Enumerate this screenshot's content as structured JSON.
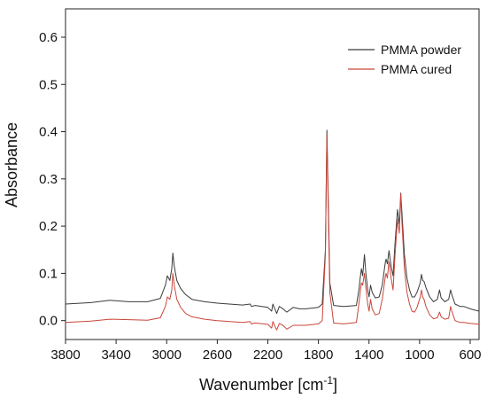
{
  "chart_data": {
    "type": "line",
    "xlabel": "Wavenumber [cm",
    "xlabel_sup": "-1",
    "xlabel_tail": "]",
    "ylabel": "Absorbance",
    "x_reversed": true,
    "xlim": [
      3800,
      530
    ],
    "ylim": [
      -0.04,
      0.66
    ],
    "x_ticks": [
      3800,
      3400,
      3000,
      2600,
      2200,
      1800,
      1400,
      1000,
      600
    ],
    "x_tick_labels": [
      "3800",
      "3400",
      "3000",
      "2600",
      "2200",
      "1800",
      "1400",
      "1000",
      "600"
    ],
    "y_ticks": [
      0.0,
      0.1,
      0.2,
      0.3,
      0.4,
      0.5,
      0.6
    ],
    "y_tick_labels": [
      "0.0",
      "0.1",
      "0.2",
      "0.3",
      "0.4",
      "0.5",
      "0.6"
    ],
    "grid": false,
    "legend_position": "top-right",
    "series": [
      {
        "name": "PMMA powder",
        "color": "#3a3a3a",
        "points": [
          [
            3800,
            0.035
          ],
          [
            3600,
            0.038
          ],
          [
            3450,
            0.043
          ],
          [
            3300,
            0.04
          ],
          [
            3150,
            0.04
          ],
          [
            3050,
            0.047
          ],
          [
            3010,
            0.075
          ],
          [
            2995,
            0.095
          ],
          [
            2975,
            0.085
          ],
          [
            2960,
            0.11
          ],
          [
            2951,
            0.143
          ],
          [
            2940,
            0.115
          ],
          [
            2920,
            0.085
          ],
          [
            2890,
            0.068
          ],
          [
            2850,
            0.055
          ],
          [
            2800,
            0.045
          ],
          [
            2700,
            0.04
          ],
          [
            2600,
            0.037
          ],
          [
            2400,
            0.033
          ],
          [
            2340,
            0.035
          ],
          [
            2330,
            0.03
          ],
          [
            2300,
            0.032
          ],
          [
            2200,
            0.028
          ],
          [
            2170,
            0.02
          ],
          [
            2160,
            0.035
          ],
          [
            2130,
            0.015
          ],
          [
            2110,
            0.03
          ],
          [
            2080,
            0.025
          ],
          [
            2050,
            0.018
          ],
          [
            2000,
            0.028
          ],
          [
            1950,
            0.025
          ],
          [
            1900,
            0.025
          ],
          [
            1800,
            0.028
          ],
          [
            1770,
            0.035
          ],
          [
            1745,
            0.15
          ],
          [
            1733,
            0.403
          ],
          [
            1722,
            0.25
          ],
          [
            1710,
            0.08
          ],
          [
            1680,
            0.032
          ],
          [
            1600,
            0.03
          ],
          [
            1500,
            0.032
          ],
          [
            1480,
            0.065
          ],
          [
            1470,
            0.09
          ],
          [
            1460,
            0.11
          ],
          [
            1450,
            0.095
          ],
          [
            1436,
            0.14
          ],
          [
            1425,
            0.1
          ],
          [
            1410,
            0.065
          ],
          [
            1400,
            0.05
          ],
          [
            1388,
            0.075
          ],
          [
            1375,
            0.06
          ],
          [
            1350,
            0.048
          ],
          [
            1320,
            0.05
          ],
          [
            1295,
            0.075
          ],
          [
            1270,
            0.125
          ],
          [
            1265,
            0.13
          ],
          [
            1255,
            0.12
          ],
          [
            1242,
            0.148
          ],
          [
            1225,
            0.115
          ],
          [
            1210,
            0.095
          ],
          [
            1195,
            0.16
          ],
          [
            1175,
            0.235
          ],
          [
            1160,
            0.205
          ],
          [
            1149,
            0.27
          ],
          [
            1140,
            0.23
          ],
          [
            1120,
            0.14
          ],
          [
            1100,
            0.09
          ],
          [
            1080,
            0.065
          ],
          [
            1060,
            0.05
          ],
          [
            1040,
            0.05
          ],
          [
            1020,
            0.06
          ],
          [
            995,
            0.08
          ],
          [
            985,
            0.098
          ],
          [
            975,
            0.085
          ],
          [
            965,
            0.083
          ],
          [
            950,
            0.07
          ],
          [
            920,
            0.05
          ],
          [
            890,
            0.04
          ],
          [
            860,
            0.045
          ],
          [
            842,
            0.065
          ],
          [
            830,
            0.048
          ],
          [
            800,
            0.04
          ],
          [
            770,
            0.045
          ],
          [
            755,
            0.065
          ],
          [
            745,
            0.055
          ],
          [
            720,
            0.035
          ],
          [
            680,
            0.03
          ],
          [
            650,
            0.03
          ],
          [
            600,
            0.025
          ],
          [
            560,
            0.022
          ],
          [
            530,
            0.02
          ]
        ]
      },
      {
        "name": "PMMA cured",
        "color": "#c9463a",
        "points": [
          [
            3800,
            -0.004
          ],
          [
            3600,
            -0.001
          ],
          [
            3450,
            0.003
          ],
          [
            3300,
            0.002
          ],
          [
            3150,
            0.001
          ],
          [
            3050,
            0.006
          ],
          [
            3010,
            0.03
          ],
          [
            2995,
            0.05
          ],
          [
            2975,
            0.045
          ],
          [
            2960,
            0.065
          ],
          [
            2951,
            0.1
          ],
          [
            2940,
            0.075
          ],
          [
            2920,
            0.045
          ],
          [
            2890,
            0.028
          ],
          [
            2850,
            0.015
          ],
          [
            2800,
            0.008
          ],
          [
            2700,
            0.003
          ],
          [
            2600,
            0.0
          ],
          [
            2400,
            -0.004
          ],
          [
            2340,
            -0.002
          ],
          [
            2330,
            -0.007
          ],
          [
            2300,
            -0.005
          ],
          [
            2200,
            -0.008
          ],
          [
            2170,
            -0.016
          ],
          [
            2160,
            -0.002
          ],
          [
            2130,
            -0.02
          ],
          [
            2110,
            -0.006
          ],
          [
            2080,
            -0.01
          ],
          [
            2050,
            -0.018
          ],
          [
            2000,
            -0.01
          ],
          [
            1950,
            -0.01
          ],
          [
            1900,
            -0.01
          ],
          [
            1800,
            -0.007
          ],
          [
            1770,
            0.0
          ],
          [
            1745,
            0.14
          ],
          [
            1733,
            0.396
          ],
          [
            1722,
            0.23
          ],
          [
            1710,
            0.06
          ],
          [
            1680,
            -0.005
          ],
          [
            1600,
            -0.007
          ],
          [
            1500,
            -0.004
          ],
          [
            1480,
            0.035
          ],
          [
            1470,
            0.06
          ],
          [
            1460,
            0.08
          ],
          [
            1450,
            0.075
          ],
          [
            1436,
            0.1
          ],
          [
            1425,
            0.07
          ],
          [
            1410,
            0.035
          ],
          [
            1400,
            0.02
          ],
          [
            1388,
            0.045
          ],
          [
            1375,
            0.025
          ],
          [
            1350,
            0.012
          ],
          [
            1320,
            0.015
          ],
          [
            1295,
            0.045
          ],
          [
            1270,
            0.095
          ],
          [
            1265,
            0.1
          ],
          [
            1255,
            0.09
          ],
          [
            1242,
            0.125
          ],
          [
            1225,
            0.09
          ],
          [
            1210,
            0.065
          ],
          [
            1195,
            0.135
          ],
          [
            1175,
            0.215
          ],
          [
            1160,
            0.185
          ],
          [
            1149,
            0.268
          ],
          [
            1140,
            0.21
          ],
          [
            1120,
            0.11
          ],
          [
            1100,
            0.06
          ],
          [
            1080,
            0.035
          ],
          [
            1060,
            0.02
          ],
          [
            1040,
            0.018
          ],
          [
            1020,
            0.028
          ],
          [
            995,
            0.05
          ],
          [
            985,
            0.065
          ],
          [
            975,
            0.05
          ],
          [
            965,
            0.045
          ],
          [
            950,
            0.03
          ],
          [
            920,
            0.012
          ],
          [
            890,
            0.004
          ],
          [
            860,
            0.006
          ],
          [
            842,
            0.018
          ],
          [
            830,
            0.008
          ],
          [
            800,
            0.003
          ],
          [
            770,
            0.005
          ],
          [
            755,
            0.03
          ],
          [
            745,
            0.02
          ],
          [
            720,
            0.0
          ],
          [
            680,
            -0.004
          ],
          [
            650,
            -0.004
          ],
          [
            600,
            -0.006
          ],
          [
            560,
            -0.007
          ],
          [
            530,
            -0.008
          ]
        ]
      }
    ]
  }
}
